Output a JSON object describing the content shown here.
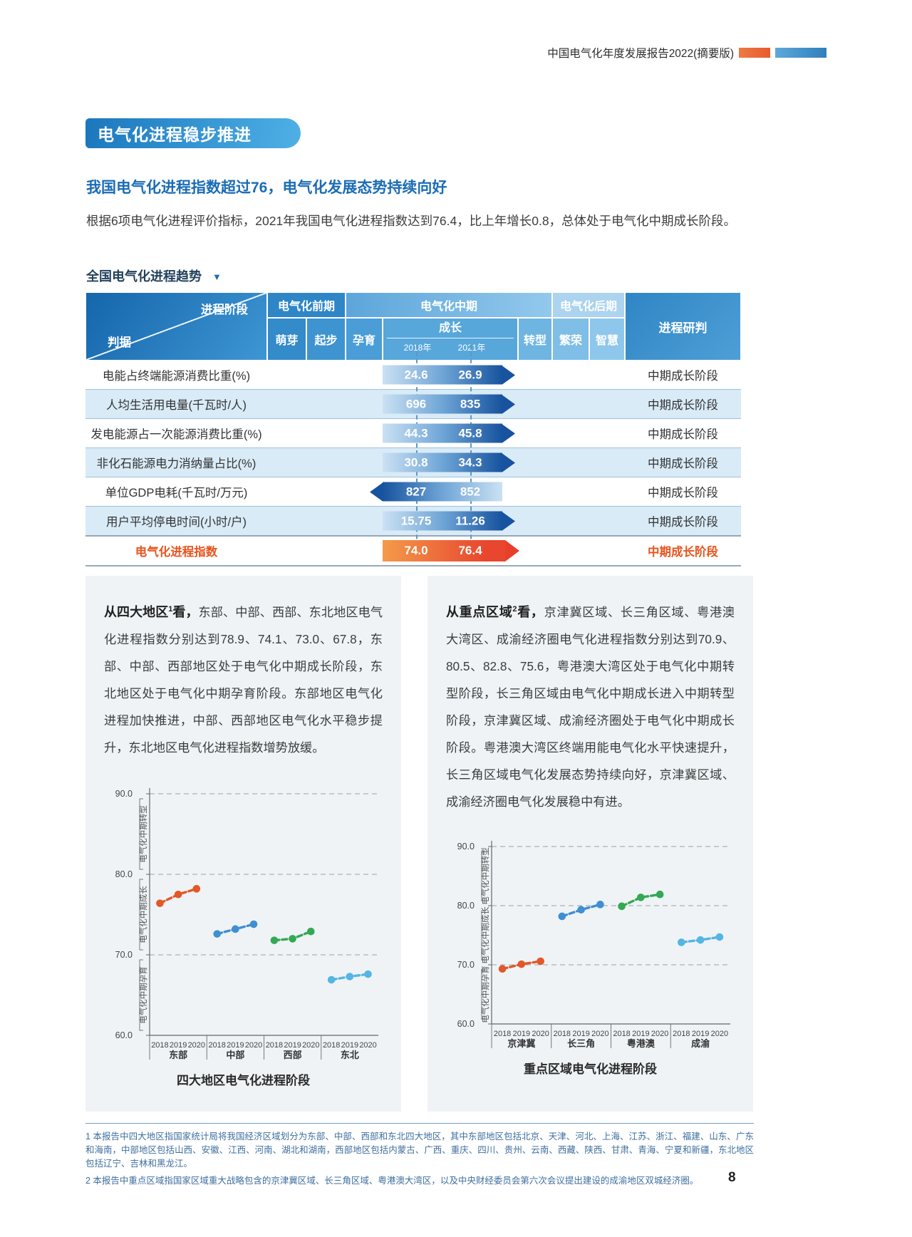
{
  "page": {
    "header_title": "中国电气化年度发展报告2022(摘要版)",
    "page_number": "8"
  },
  "colors": {
    "accent_blue": "#1B6CB5",
    "accent_orange": "#E8541E",
    "banner_gradient_start": "#1A77BD",
    "banner_gradient_end": "#4FB0E6"
  },
  "banner": {
    "title": "电气化进程稳步推进"
  },
  "intro": {
    "heading": "我国电气化进程指数超过76，电气化发展态势持续向好",
    "paragraph": "根据6项电气化进程评价指标，2021年我国电气化进程指数达到76.4，比上年增长0.8，总体处于电气化中期成长阶段。"
  },
  "trend": {
    "label": "全国电气化进程趋势",
    "caret": "▼"
  },
  "table": {
    "corner_top": "进程阶段",
    "corner_bottom": "判据",
    "phases": [
      "电气化前期",
      "电气化中期",
      "电气化后期"
    ],
    "stages": [
      "萌芽",
      "起步",
      "孕育",
      "成长",
      "转型",
      "繁荣",
      "智慧"
    ],
    "years": [
      "2018年",
      "2021年"
    ],
    "judgment_header": "进程研判",
    "rows": [
      {
        "label": "电能占终端能源消费比重(%)",
        "v2018": "24.6",
        "v2021": "26.9",
        "direction": "right",
        "judgment": "中期成长阶段",
        "highlight": false
      },
      {
        "label": "人均生活用电量(千瓦时/人)",
        "v2018": "696",
        "v2021": "835",
        "direction": "right",
        "judgment": "中期成长阶段",
        "highlight": false
      },
      {
        "label": "发电能源占一次能源消费比重(%)",
        "v2018": "44.3",
        "v2021": "45.8",
        "direction": "right",
        "judgment": "中期成长阶段",
        "highlight": false
      },
      {
        "label": "非化石能源电力消纳量占比(%)",
        "v2018": "30.8",
        "v2021": "34.3",
        "direction": "right",
        "judgment": "中期成长阶段",
        "highlight": false
      },
      {
        "label": "单位GDP电耗(千瓦时/万元)",
        "v2018": "827",
        "v2021": "852",
        "direction": "left",
        "judgment": "中期成长阶段",
        "highlight": false
      },
      {
        "label": "用户平均停电时间(小时/户)",
        "v2018": "15.75",
        "v2021": "11.26",
        "direction": "right",
        "judgment": "中期成长阶段",
        "highlight": false
      },
      {
        "label": "电气化进程指数",
        "v2018": "74.0",
        "v2021": "76.4",
        "direction": "right",
        "judgment": "中期成长阶段",
        "highlight": true
      }
    ]
  },
  "left_box": {
    "intro_pre": "从四大地区",
    "sup": "1",
    "intro_post": "看，",
    "text": "东部、中部、西部、东北地区电气化进程指数分别达到78.9、74.1、73.0、67.8，东部、中部、西部地区处于电气化中期成长阶段，东北地区处于电气化中期孕育阶段。东部地区电气化进程加快推进，中部、西部地区电气化水平稳步提升，东北地区电气化进程指数增势放缓。"
  },
  "right_box": {
    "intro_pre": "从重点区域",
    "sup": "2",
    "intro_post": "看，",
    "text": "京津冀区域、长三角区域、粤港澳大湾区、成渝经济圈电气化进程指数分别达到70.9、80.5、82.8、75.6，粤港澳大湾区处于电气化中期转型阶段，长三角区域由电气化中期成长进入中期转型阶段，京津冀区域、成渝经济圈处于电气化中期成长阶段。粤港澳大湾区终端用能电气化水平快速提升，长三角区域电气化发展态势持续向好，京津冀区域、成渝经济圈电气化发展稳中有进。"
  },
  "chart_data": [
    {
      "type": "line",
      "title": "四大地区电气化进程阶段",
      "x_years": [
        "2018",
        "2019",
        "2020"
      ],
      "groups": [
        "东部",
        "中部",
        "西部",
        "东北"
      ],
      "series": [
        {
          "name": "东部",
          "color": "#E15829",
          "values": [
            76.4,
            77.5,
            78.2
          ]
        },
        {
          "name": "中部",
          "color": "#3F8FD2",
          "values": [
            72.6,
            73.2,
            73.8
          ]
        },
        {
          "name": "西部",
          "color": "#33A953",
          "values": [
            71.8,
            72.0,
            72.9
          ]
        },
        {
          "name": "东北",
          "color": "#55B5E3",
          "values": [
            66.9,
            67.3,
            67.6
          ]
        }
      ],
      "ylim": [
        60,
        90
      ],
      "yticks": [
        90,
        80,
        70,
        60
      ],
      "ytick_labels": [
        "90.0",
        "80.0",
        "70.0",
        "60.0"
      ],
      "band_labels": [
        "电气化中期转型",
        "电气化中期成长",
        "电气化中期孕育"
      ],
      "grid": "dashed"
    },
    {
      "type": "line",
      "title": "重点区域电气化进程阶段",
      "x_years": [
        "2018",
        "2019",
        "2020"
      ],
      "groups": [
        "京津冀",
        "长三角",
        "粤港澳",
        "成渝"
      ],
      "series": [
        {
          "name": "京津冀",
          "color": "#E15829",
          "values": [
            69.3,
            70.1,
            70.6
          ]
        },
        {
          "name": "长三角",
          "color": "#3F8FD2",
          "values": [
            78.2,
            79.3,
            80.2
          ]
        },
        {
          "name": "粤港澳",
          "color": "#33A953",
          "values": [
            79.9,
            81.4,
            81.9
          ]
        },
        {
          "name": "成渝",
          "color": "#55B5E3",
          "values": [
            73.8,
            74.2,
            74.7
          ]
        }
      ],
      "ylim": [
        60,
        90
      ],
      "yticks": [
        90,
        80,
        70,
        60
      ],
      "ytick_labels": [
        "90.0",
        "80.0",
        "70.0",
        "60.0"
      ],
      "band_labels": [
        "电气化中期转型",
        "电气化中期成长",
        "电气化中期孕育"
      ],
      "grid": "dashed"
    }
  ],
  "footnotes": [
    "1 本报告中四大地区指国家统计局将我国经济区域划分为东部、中部、西部和东北四大地区，其中东部地区包括北京、天津、河北、上海、江苏、浙江、福建、山东、广东和海南，中部地区包括山西、安徽、江西、河南、湖北和湖南，西部地区包括内蒙古、广西、重庆、四川、贵州、云南、西藏、陕西、甘肃、青海、宁夏和新疆，东北地区包括辽宁、吉林和黑龙江。",
    "2 本报告中重点区域指国家区域重大战略包含的京津冀区域、长三角区域、粤港澳大湾区，以及中央财经委员会第六次会议提出建设的成渝地区双城经济圈。"
  ]
}
